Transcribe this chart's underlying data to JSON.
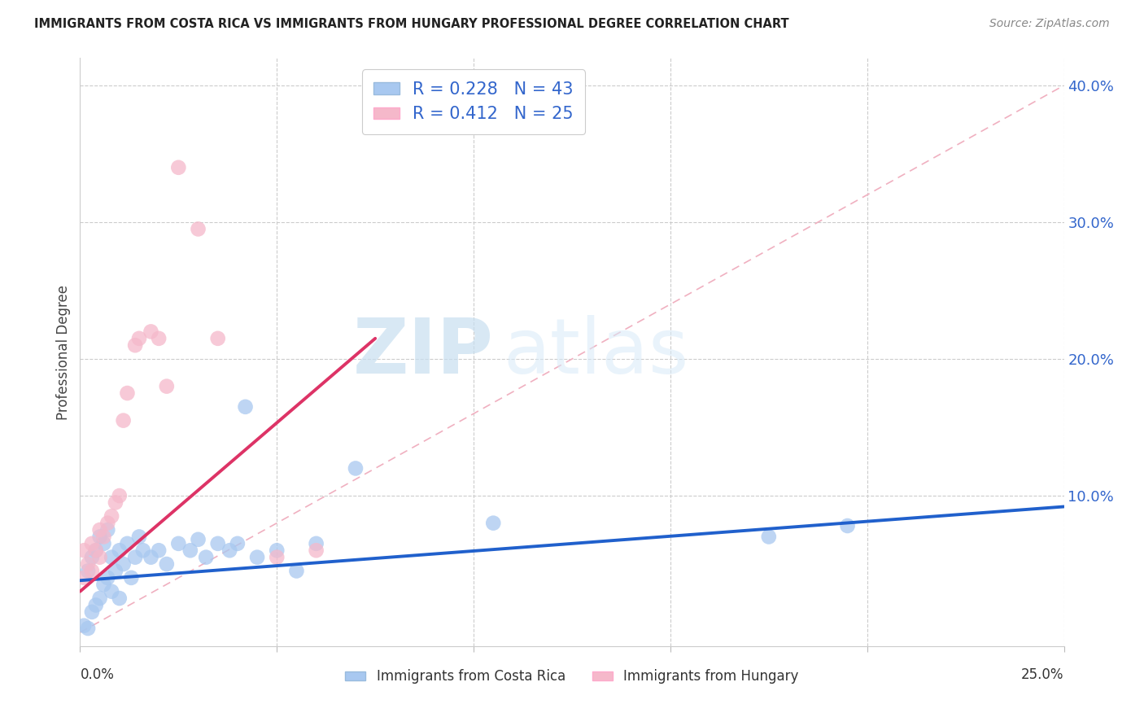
{
  "title": "IMMIGRANTS FROM COSTA RICA VS IMMIGRANTS FROM HUNGARY PROFESSIONAL DEGREE CORRELATION CHART",
  "source": "Source: ZipAtlas.com",
  "ylabel": "Professional Degree",
  "xlim": [
    0.0,
    0.25
  ],
  "ylim": [
    -0.01,
    0.42
  ],
  "plot_ylim": [
    0.0,
    0.4
  ],
  "yticks": [
    0.0,
    0.1,
    0.2,
    0.3,
    0.4
  ],
  "ytick_labels": [
    "",
    "10.0%",
    "20.0%",
    "30.0%",
    "40.0%"
  ],
  "xticks": [
    0.0,
    0.05,
    0.1,
    0.15,
    0.2,
    0.25
  ],
  "legend_r_blue": "R = 0.228",
  "legend_n_blue": "N = 43",
  "legend_r_pink": "R = 0.412",
  "legend_n_pink": "N = 25",
  "label_blue": "Immigrants from Costa Rica",
  "label_pink": "Immigrants from Hungary",
  "blue_color": "#a8c8f0",
  "pink_color": "#f5b8ca",
  "blue_line_color": "#2060cc",
  "pink_line_color": "#dd3366",
  "ref_line_color": "#f0b0c0",
  "background_color": "#ffffff",
  "grid_color": "#cccccc",
  "title_color": "#222222",
  "tick_label_color": "#3366cc",
  "watermark_color": "#d8eaf8",
  "blue_scatter_x": [
    0.001,
    0.002,
    0.002,
    0.003,
    0.003,
    0.004,
    0.004,
    0.005,
    0.005,
    0.006,
    0.006,
    0.007,
    0.007,
    0.008,
    0.008,
    0.009,
    0.01,
    0.01,
    0.011,
    0.012,
    0.013,
    0.014,
    0.015,
    0.016,
    0.018,
    0.02,
    0.022,
    0.025,
    0.028,
    0.03,
    0.032,
    0.035,
    0.038,
    0.04,
    0.042,
    0.045,
    0.05,
    0.055,
    0.06,
    0.07,
    0.105,
    0.175,
    0.195
  ],
  "blue_scatter_y": [
    0.005,
    0.003,
    0.045,
    0.015,
    0.055,
    0.02,
    0.06,
    0.025,
    0.07,
    0.035,
    0.065,
    0.04,
    0.075,
    0.03,
    0.055,
    0.045,
    0.025,
    0.06,
    0.05,
    0.065,
    0.04,
    0.055,
    0.07,
    0.06,
    0.055,
    0.06,
    0.05,
    0.065,
    0.06,
    0.068,
    0.055,
    0.065,
    0.06,
    0.065,
    0.165,
    0.055,
    0.06,
    0.045,
    0.065,
    0.12,
    0.08,
    0.07,
    0.078
  ],
  "pink_scatter_x": [
    0.001,
    0.001,
    0.002,
    0.003,
    0.003,
    0.004,
    0.005,
    0.005,
    0.006,
    0.007,
    0.008,
    0.009,
    0.01,
    0.011,
    0.012,
    0.014,
    0.015,
    0.018,
    0.02,
    0.022,
    0.025,
    0.03,
    0.035,
    0.05,
    0.06
  ],
  "pink_scatter_y": [
    0.04,
    0.06,
    0.05,
    0.045,
    0.065,
    0.06,
    0.055,
    0.075,
    0.07,
    0.08,
    0.085,
    0.095,
    0.1,
    0.155,
    0.175,
    0.21,
    0.215,
    0.22,
    0.215,
    0.18,
    0.34,
    0.295,
    0.215,
    0.055,
    0.06
  ],
  "blue_line_x": [
    0.0,
    0.25
  ],
  "blue_line_y": [
    0.038,
    0.092
  ],
  "pink_line_x": [
    0.0,
    0.075
  ],
  "pink_line_y": [
    0.03,
    0.215
  ],
  "ref_line_x": [
    0.0,
    0.25
  ],
  "ref_line_y": [
    0.0,
    0.4
  ]
}
